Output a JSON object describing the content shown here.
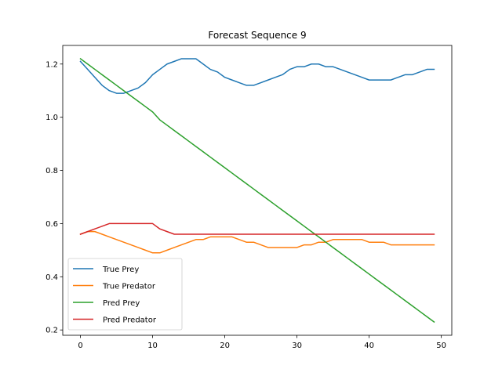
{
  "chart_data": {
    "type": "line",
    "title": "Forecast Sequence 9",
    "xlabel": "",
    "ylabel": "",
    "xlim": [
      -2.45,
      51.45
    ],
    "ylim": [
      0.18,
      1.27
    ],
    "xticks": [
      0,
      10,
      20,
      30,
      40,
      50
    ],
    "yticks": [
      0.2,
      0.4,
      0.6,
      0.8,
      1.0,
      1.2
    ],
    "xtick_labels": [
      "0",
      "10",
      "20",
      "30",
      "40",
      "50"
    ],
    "ytick_labels": [
      "0.2",
      "0.4",
      "0.6",
      "0.8",
      "1.0",
      "1.2"
    ],
    "legend_position": "lower-left",
    "grid": false,
    "x": [
      0,
      1,
      2,
      3,
      4,
      5,
      6,
      7,
      8,
      9,
      10,
      11,
      12,
      13,
      14,
      15,
      16,
      17,
      18,
      19,
      20,
      21,
      22,
      23,
      24,
      25,
      26,
      27,
      28,
      29,
      30,
      31,
      32,
      33,
      34,
      35,
      36,
      37,
      38,
      39,
      40,
      41,
      42,
      43,
      44,
      45,
      46,
      47,
      48,
      49
    ],
    "series": [
      {
        "name": "True Prey",
        "color": "#1f77b4",
        "values": [
          1.21,
          1.18,
          1.15,
          1.12,
          1.1,
          1.09,
          1.09,
          1.1,
          1.11,
          1.13,
          1.16,
          1.18,
          1.2,
          1.21,
          1.22,
          1.22,
          1.22,
          1.2,
          1.18,
          1.17,
          1.15,
          1.14,
          1.13,
          1.12,
          1.12,
          1.13,
          1.14,
          1.15,
          1.16,
          1.18,
          1.19,
          1.19,
          1.2,
          1.2,
          1.19,
          1.19,
          1.18,
          1.17,
          1.16,
          1.15,
          1.14,
          1.14,
          1.14,
          1.14,
          1.15,
          1.16,
          1.16,
          1.17,
          1.18,
          1.18
        ]
      },
      {
        "name": "True Predator",
        "color": "#ff7f0e",
        "values": [
          0.56,
          0.57,
          0.57,
          0.56,
          0.55,
          0.54,
          0.53,
          0.52,
          0.51,
          0.5,
          0.49,
          0.49,
          0.5,
          0.51,
          0.52,
          0.53,
          0.54,
          0.54,
          0.55,
          0.55,
          0.55,
          0.55,
          0.54,
          0.53,
          0.53,
          0.52,
          0.51,
          0.51,
          0.51,
          0.51,
          0.51,
          0.52,
          0.52,
          0.53,
          0.53,
          0.54,
          0.54,
          0.54,
          0.54,
          0.54,
          0.53,
          0.53,
          0.53,
          0.52,
          0.52,
          0.52,
          0.52,
          0.52,
          0.52,
          0.52
        ]
      },
      {
        "name": "Pred Prey",
        "color": "#2ca02c",
        "values": [
          1.22,
          1.2,
          1.18,
          1.16,
          1.14,
          1.12,
          1.1,
          1.08,
          1.06,
          1.04,
          1.02,
          0.99,
          0.97,
          0.95,
          0.93,
          0.91,
          0.89,
          0.87,
          0.85,
          0.83,
          0.81,
          0.79,
          0.77,
          0.75,
          0.73,
          0.71,
          0.69,
          0.67,
          0.65,
          0.63,
          0.61,
          0.59,
          0.57,
          0.55,
          0.53,
          0.51,
          0.49,
          0.47,
          0.45,
          0.43,
          0.41,
          0.39,
          0.37,
          0.35,
          0.33,
          0.31,
          0.29,
          0.27,
          0.25,
          0.23
        ]
      },
      {
        "name": "Pred Predator",
        "color": "#d62728",
        "values": [
          0.56,
          0.57,
          0.58,
          0.59,
          0.6,
          0.6,
          0.6,
          0.6,
          0.6,
          0.6,
          0.6,
          0.58,
          0.57,
          0.56,
          0.56,
          0.56,
          0.56,
          0.56,
          0.56,
          0.56,
          0.56,
          0.56,
          0.56,
          0.56,
          0.56,
          0.56,
          0.56,
          0.56,
          0.56,
          0.56,
          0.56,
          0.56,
          0.56,
          0.56,
          0.56,
          0.56,
          0.56,
          0.56,
          0.56,
          0.56,
          0.56,
          0.56,
          0.56,
          0.56,
          0.56,
          0.56,
          0.56,
          0.56,
          0.56,
          0.56
        ]
      }
    ]
  }
}
